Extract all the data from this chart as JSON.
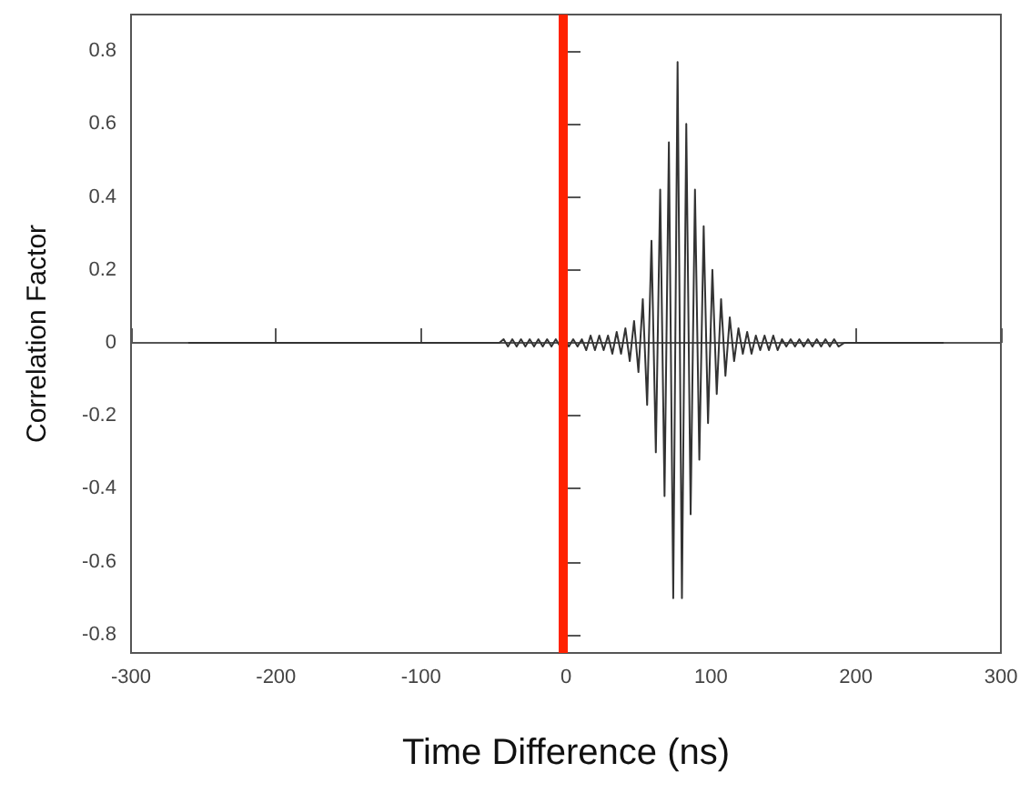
{
  "chart_data": {
    "type": "line",
    "xlabel": "Time Difference (ns)",
    "ylabel": "Correlation Factor",
    "xlim": [
      -300,
      300
    ],
    "xticks": [
      -300,
      -200,
      -100,
      0,
      100,
      200,
      300
    ],
    "ylim": [
      -0.85,
      0.9
    ],
    "yticks": [
      -0.8,
      -0.6,
      -0.4,
      -0.2,
      0,
      0.2,
      0.4,
      0.6,
      0.8
    ],
    "grid": false,
    "marker": "none",
    "line_style": "solid",
    "series": [
      {
        "color": "#333333",
        "x": [
          -260,
          -46,
          -43,
          -40,
          -37,
          -34,
          -31,
          -28,
          -25,
          -22,
          -19,
          -16,
          -13,
          -10,
          -7,
          -4,
          -1,
          2,
          5,
          8,
          11,
          14,
          17,
          20,
          23,
          26,
          29,
          32,
          35,
          38,
          41,
          44,
          47,
          50,
          53,
          56,
          59,
          62,
          65,
          68,
          71,
          74,
          77,
          80,
          83,
          86,
          89,
          92,
          95,
          98,
          101,
          104,
          107,
          110,
          113,
          116,
          119,
          122,
          125,
          128,
          131,
          134,
          137,
          140,
          143,
          146,
          149,
          152,
          155,
          158,
          161,
          164,
          167,
          170,
          173,
          176,
          179,
          182,
          185,
          188,
          192,
          260
        ],
        "values": [
          0,
          0,
          0.01,
          -0.01,
          0.01,
          -0.01,
          0.01,
          -0.01,
          0.01,
          -0.01,
          0.01,
          -0.01,
          0.01,
          -0.01,
          0.01,
          -0.01,
          0.01,
          -0.01,
          0.01,
          -0.01,
          0.01,
          -0.02,
          0.02,
          -0.02,
          0.02,
          -0.02,
          0.02,
          -0.03,
          0.03,
          -0.03,
          0.04,
          -0.05,
          0.06,
          -0.08,
          0.12,
          -0.17,
          0.28,
          -0.3,
          0.42,
          -0.42,
          0.55,
          -0.7,
          0.77,
          -0.7,
          0.6,
          -0.47,
          0.42,
          -0.32,
          0.32,
          -0.22,
          0.2,
          -0.14,
          0.12,
          -0.09,
          0.07,
          -0.05,
          0.04,
          -0.03,
          0.03,
          -0.03,
          0.02,
          -0.02,
          0.02,
          -0.02,
          0.02,
          -0.02,
          0.01,
          -0.01,
          0.01,
          -0.01,
          0.01,
          -0.01,
          0.01,
          -0.01,
          0.01,
          -0.01,
          0.01,
          -0.01,
          0.01,
          -0.01,
          0,
          0
        ]
      }
    ],
    "ref_lines": [
      {
        "axis": "x",
        "value": -2,
        "color": "#ff2200"
      }
    ]
  }
}
